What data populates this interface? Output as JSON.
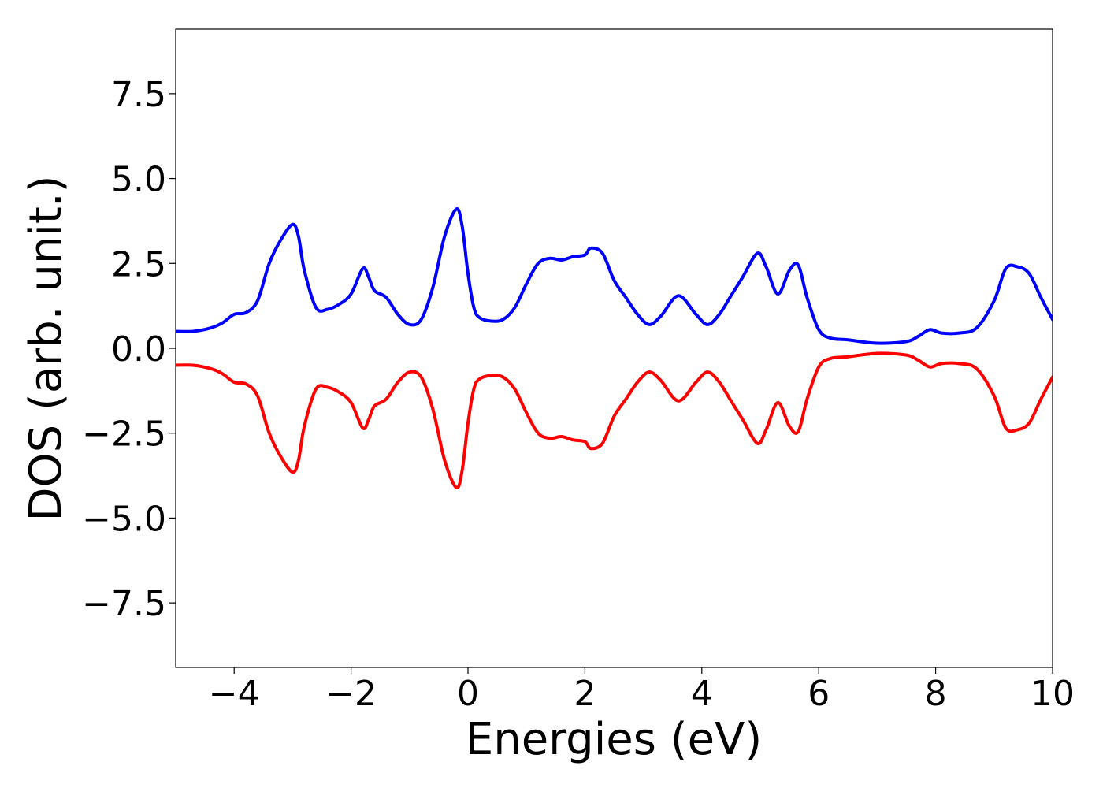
{
  "chart_data": {
    "type": "line",
    "title": "",
    "xlabel": "Energies (eV)",
    "ylabel": "DOS (arb. unit.)",
    "xlim": [
      -5,
      10
    ],
    "ylim": [
      -9.4,
      9.4
    ],
    "grid": false,
    "legend": "none",
    "x_ticks": [
      -4,
      -2,
      0,
      2,
      4,
      6,
      8,
      10
    ],
    "x_tick_labels": [
      "−4",
      "−2",
      "0",
      "2",
      "4",
      "6",
      "8",
      "10"
    ],
    "y_ticks": [
      -7.5,
      -5.0,
      -2.5,
      0.0,
      2.5,
      5.0,
      7.5
    ],
    "y_tick_labels": [
      "−7.5",
      "−5.0",
      "−2.5",
      "0.0",
      "2.5",
      "5.0",
      "7.5"
    ],
    "series": [
      {
        "color": "#0000ff",
        "x": [
          -5.0,
          -4.7,
          -4.4,
          -4.2,
          -4.0,
          -3.8,
          -3.6,
          -3.4,
          -3.2,
          -3.0,
          -2.9,
          -2.8,
          -2.6,
          -2.4,
          -2.2,
          -2.0,
          -1.8,
          -1.7,
          -1.6,
          -1.4,
          -1.2,
          -1.0,
          -0.8,
          -0.6,
          -0.4,
          -0.2,
          -0.1,
          0.0,
          0.1,
          0.2,
          0.4,
          0.6,
          0.8,
          1.0,
          1.2,
          1.4,
          1.6,
          1.8,
          2.0,
          2.1,
          2.3,
          2.5,
          2.7,
          2.9,
          3.1,
          3.3,
          3.6,
          3.9,
          4.1,
          4.3,
          4.5,
          4.7,
          4.95,
          5.1,
          5.3,
          5.5,
          5.65,
          5.8,
          6.0,
          6.2,
          6.5,
          7.0,
          7.5,
          7.7,
          7.9,
          8.1,
          8.4,
          8.7,
          9.0,
          9.2,
          9.4,
          9.6,
          9.8,
          10.0
        ],
        "y": [
          0.5,
          0.5,
          0.6,
          0.75,
          1.0,
          1.05,
          1.4,
          2.5,
          3.2,
          3.65,
          3.3,
          2.3,
          1.2,
          1.15,
          1.3,
          1.6,
          2.35,
          2.1,
          1.7,
          1.5,
          1.0,
          0.7,
          0.85,
          1.8,
          3.3,
          4.1,
          3.6,
          2.2,
          1.2,
          0.9,
          0.8,
          0.85,
          1.2,
          1.9,
          2.5,
          2.65,
          2.6,
          2.7,
          2.75,
          2.95,
          2.8,
          2.0,
          1.5,
          1.0,
          0.7,
          0.95,
          1.55,
          1.0,
          0.7,
          1.0,
          1.55,
          2.1,
          2.8,
          2.4,
          1.6,
          2.3,
          2.45,
          1.5,
          0.55,
          0.3,
          0.25,
          0.15,
          0.2,
          0.35,
          0.55,
          0.45,
          0.45,
          0.6,
          1.4,
          2.35,
          2.4,
          2.2,
          1.5,
          0.85
        ]
      },
      {
        "color": "#ff0000",
        "x": [
          -5.0,
          -4.7,
          -4.4,
          -4.2,
          -4.0,
          -3.8,
          -3.6,
          -3.4,
          -3.2,
          -3.0,
          -2.9,
          -2.8,
          -2.6,
          -2.4,
          -2.2,
          -2.0,
          -1.8,
          -1.7,
          -1.6,
          -1.4,
          -1.2,
          -1.0,
          -0.8,
          -0.6,
          -0.4,
          -0.2,
          -0.1,
          0.0,
          0.1,
          0.2,
          0.4,
          0.6,
          0.8,
          1.0,
          1.2,
          1.4,
          1.6,
          1.8,
          2.0,
          2.1,
          2.3,
          2.5,
          2.7,
          2.9,
          3.1,
          3.3,
          3.6,
          3.9,
          4.1,
          4.3,
          4.5,
          4.7,
          4.95,
          5.1,
          5.3,
          5.5,
          5.65,
          5.8,
          6.0,
          6.2,
          6.5,
          7.0,
          7.5,
          7.7,
          7.9,
          8.1,
          8.4,
          8.7,
          9.0,
          9.2,
          9.4,
          9.6,
          9.8,
          10.0
        ],
        "y": [
          -0.5,
          -0.5,
          -0.6,
          -0.75,
          -1.0,
          -1.05,
          -1.4,
          -2.5,
          -3.2,
          -3.65,
          -3.3,
          -2.3,
          -1.2,
          -1.15,
          -1.3,
          -1.6,
          -2.35,
          -2.1,
          -1.7,
          -1.5,
          -1.0,
          -0.7,
          -0.85,
          -1.8,
          -3.3,
          -4.1,
          -3.6,
          -2.2,
          -1.2,
          -0.9,
          -0.8,
          -0.85,
          -1.2,
          -1.9,
          -2.5,
          -2.65,
          -2.6,
          -2.7,
          -2.75,
          -2.95,
          -2.8,
          -2.0,
          -1.5,
          -1.0,
          -0.7,
          -0.95,
          -1.55,
          -1.0,
          -0.7,
          -1.0,
          -1.55,
          -2.1,
          -2.8,
          -2.4,
          -1.6,
          -2.3,
          -2.45,
          -1.5,
          -0.55,
          -0.3,
          -0.25,
          -0.15,
          -0.2,
          -0.35,
          -0.55,
          -0.45,
          -0.45,
          -0.6,
          -1.4,
          -2.35,
          -2.4,
          -2.2,
          -1.5,
          -0.85
        ]
      }
    ]
  }
}
